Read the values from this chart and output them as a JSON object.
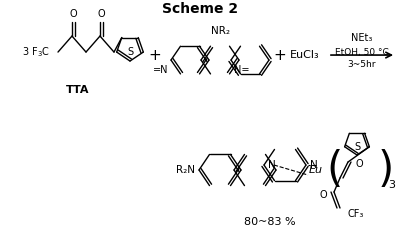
{
  "title": "Scheme 2",
  "title_fontsize": 10,
  "bg_color": "#ffffff",
  "line_color": "#000000",
  "text_color": "#000000",
  "yield_text": "80~83 %",
  "tta_label": "TTA",
  "reaction_conditions": [
    "NEt₃",
    "EtOH, 50 °C",
    "3~5hr"
  ],
  "eucl3_text": "EuCl₃",
  "nr2_text": "NR₂",
  "r2n_text": "R₂N"
}
